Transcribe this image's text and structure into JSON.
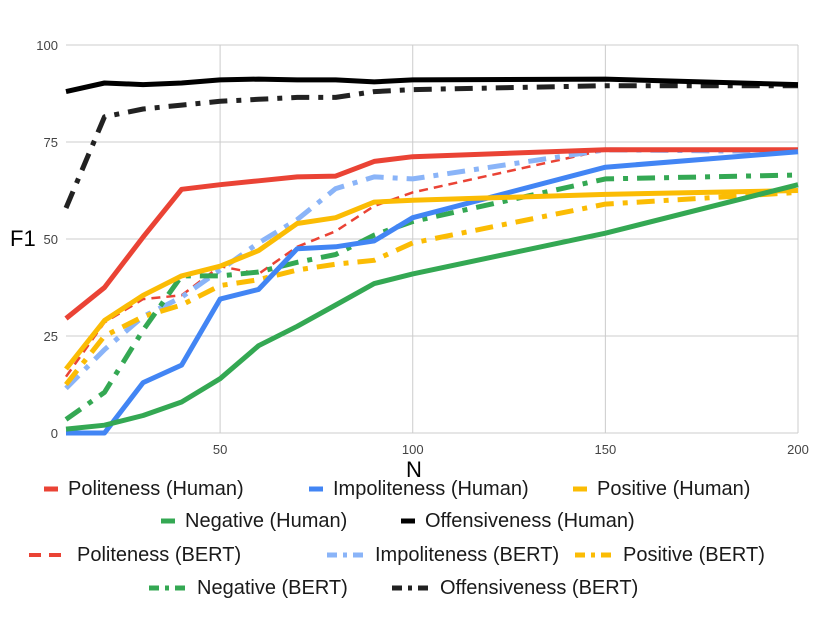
{
  "chart_data": {
    "type": "line",
    "title": "",
    "xlabel": "N",
    "ylabel": "F1",
    "xlim": [
      10,
      200
    ],
    "ylim": [
      0,
      100
    ],
    "xticks": [
      50,
      100,
      150,
      200
    ],
    "yticks": [
      0,
      25,
      50,
      75,
      100
    ],
    "grid": true,
    "legend": "bottom",
    "x": [
      10,
      20,
      30,
      40,
      50,
      60,
      70,
      80,
      90,
      100,
      150,
      200
    ],
    "series": [
      {
        "name": "Politeness (Human)",
        "color": "#EA4335",
        "style": "solid",
        "values": [
          29.5,
          37.5,
          50.5,
          62.8,
          64,
          65,
          66,
          66.2,
          70,
          71.2,
          73,
          73
        ]
      },
      {
        "name": "Impoliteness (Human)",
        "color": "#4285F4",
        "style": "solid",
        "values": [
          0,
          0,
          13,
          17.5,
          34.5,
          37,
          47.5,
          48,
          49.5,
          55.5,
          68.5,
          72.5
        ]
      },
      {
        "name": "Positive (Human)",
        "color": "#FBBC04",
        "style": "solid",
        "values": [
          16.5,
          29,
          35.5,
          40.5,
          43,
          47,
          54,
          55.5,
          59.5,
          60,
          61.5,
          62.5
        ]
      },
      {
        "name": "Negative (Human)",
        "color": "#34A853",
        "style": "solid",
        "values": [
          1,
          2,
          4.5,
          8,
          14,
          22.5,
          27.5,
          33,
          38.5,
          41,
          51.5,
          64
        ]
      },
      {
        "name": "Offensiveness (Human)",
        "color": "#000000",
        "style": "solid",
        "values": [
          88,
          90.2,
          89.8,
          90.2,
          91,
          91.2,
          91,
          91,
          90.5,
          91,
          91.2,
          89.8
        ]
      },
      {
        "name": "Politeness (BERT)",
        "color": "#EA4335",
        "style": "dashed",
        "values": [
          14.5,
          28.5,
          34.5,
          35.5,
          43,
          41,
          48,
          52,
          58.5,
          62,
          73,
          73
        ]
      },
      {
        "name": "Impoliteness (BERT)",
        "color": "#8AB4F8",
        "style": "dashdot",
        "values": [
          11.5,
          21.5,
          30,
          35,
          42,
          49,
          55,
          63,
          66,
          65.5,
          73,
          72.5
        ]
      },
      {
        "name": "Positive (BERT)",
        "color": "#FBBC04",
        "style": "dashdot",
        "values": [
          12.5,
          25,
          30,
          33,
          38,
          39.5,
          42,
          43.5,
          44.5,
          49,
          59,
          62
        ]
      },
      {
        "name": "Negative (BERT)",
        "color": "#34A853",
        "style": "dashdot",
        "values": [
          3.5,
          10.5,
          26.5,
          40.5,
          40.5,
          41.5,
          44,
          46,
          51,
          54.5,
          65.5,
          66.5
        ]
      },
      {
        "name": "Offensiveness (BERT)",
        "color": "#222222",
        "style": "dashdot",
        "values": [
          58,
          81.5,
          83.5,
          84.5,
          85.5,
          86,
          86.5,
          86.5,
          88,
          88.5,
          89.5,
          89.5
        ]
      }
    ]
  }
}
